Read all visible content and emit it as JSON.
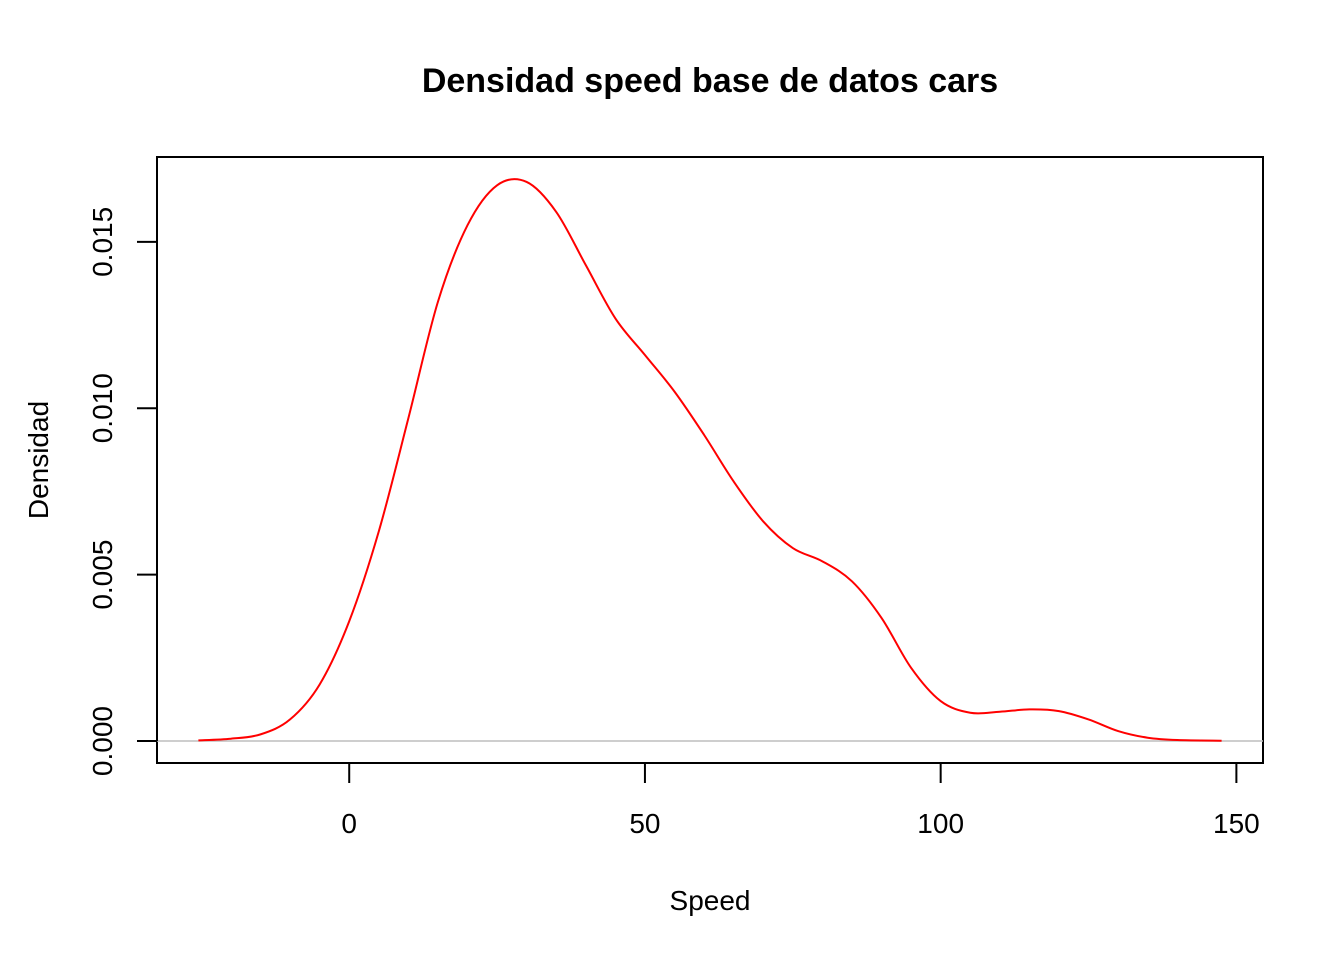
{
  "chart_data": {
    "type": "line",
    "title": "Densidad speed base de datos cars",
    "xlabel": "Speed",
    "ylabel": "Densidad",
    "xlim": [
      -32.5,
      154.5
    ],
    "ylim": [
      -0.00066,
      0.01755
    ],
    "x_ticks": [
      0,
      50,
      100,
      150
    ],
    "x_tick_labels": [
      "0",
      "50",
      "100",
      "150"
    ],
    "y_ticks": [
      0,
      0.005,
      0.01,
      0.015
    ],
    "y_tick_labels": [
      "0.000",
      "0.005",
      "0.010",
      "0.015"
    ],
    "zero_line": true,
    "grid": false,
    "line_color": "#ff0000",
    "zero_line_color": "#bebebe",
    "series": [
      {
        "x": [
          -25.5,
          -20,
          -15,
          -10,
          -5,
          0,
          5,
          10,
          15,
          20,
          25,
          30,
          35,
          40,
          45,
          50,
          55,
          60,
          65,
          70,
          75,
          80,
          85,
          90,
          95,
          100,
          105,
          110,
          115,
          120,
          125,
          130,
          135,
          140,
          147.5
        ],
        "y": [
          2e-05,
          7e-05,
          0.0002,
          0.00065,
          0.0017,
          0.0036,
          0.0063,
          0.0097,
          0.0132,
          0.0155,
          0.0167,
          0.0168,
          0.0159,
          0.0143,
          0.0127,
          0.0116,
          0.0105,
          0.0092,
          0.0078,
          0.0066,
          0.0058,
          0.0054,
          0.0048,
          0.0037,
          0.0022,
          0.0012,
          0.00085,
          0.00088,
          0.00095,
          0.0009,
          0.00065,
          0.0003,
          0.0001,
          3e-05,
          1e-05
        ]
      }
    ]
  }
}
